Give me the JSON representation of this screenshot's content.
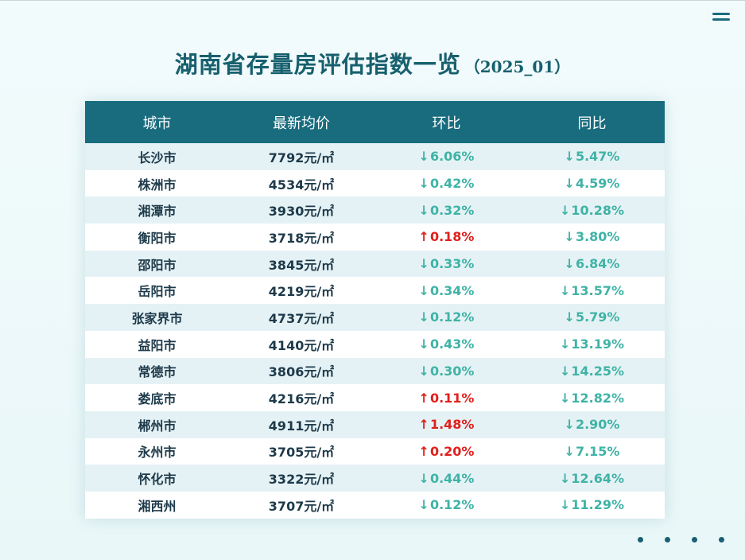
{
  "title": {
    "main": "湖南省存量房评估指数一览",
    "sub": "（2025_01）"
  },
  "table": {
    "headers": [
      "城市",
      "最新均价",
      "环比",
      "同比"
    ],
    "rows": [
      {
        "city": "长沙市",
        "price": "7792元/㎡",
        "mom": "6.06%",
        "mom_dir": "down",
        "yoy": "5.47%",
        "yoy_dir": "down"
      },
      {
        "city": "株洲市",
        "price": "4534元/㎡",
        "mom": "0.42%",
        "mom_dir": "down",
        "yoy": "4.59%",
        "yoy_dir": "down"
      },
      {
        "city": "湘潭市",
        "price": "3930元/㎡",
        "mom": "0.32%",
        "mom_dir": "down",
        "yoy": "10.28%",
        "yoy_dir": "down"
      },
      {
        "city": "衡阳市",
        "price": "3718元/㎡",
        "mom": "0.18%",
        "mom_dir": "up",
        "yoy": "3.80%",
        "yoy_dir": "down"
      },
      {
        "city": "邵阳市",
        "price": "3845元/㎡",
        "mom": "0.33%",
        "mom_dir": "down",
        "yoy": "6.84%",
        "yoy_dir": "down"
      },
      {
        "city": "岳阳市",
        "price": "4219元/㎡",
        "mom": "0.34%",
        "mom_dir": "down",
        "yoy": "13.57%",
        "yoy_dir": "down"
      },
      {
        "city": "张家界市",
        "price": "4737元/㎡",
        "mom": "0.12%",
        "mom_dir": "down",
        "yoy": "5.79%",
        "yoy_dir": "down"
      },
      {
        "city": "益阳市",
        "price": "4140元/㎡",
        "mom": "0.43%",
        "mom_dir": "down",
        "yoy": "13.19%",
        "yoy_dir": "down"
      },
      {
        "city": "常德市",
        "price": "3806元/㎡",
        "mom": "0.30%",
        "mom_dir": "down",
        "yoy": "14.25%",
        "yoy_dir": "down"
      },
      {
        "city": "娄底市",
        "price": "4216元/㎡",
        "mom": "0.11%",
        "mom_dir": "up",
        "yoy": "12.82%",
        "yoy_dir": "down"
      },
      {
        "city": "郴州市",
        "price": "4911元/㎡",
        "mom": "1.48%",
        "mom_dir": "up",
        "yoy": "2.90%",
        "yoy_dir": "down"
      },
      {
        "city": "永州市",
        "price": "3705元/㎡",
        "mom": "0.20%",
        "mom_dir": "up",
        "yoy": "7.15%",
        "yoy_dir": "down"
      },
      {
        "city": "怀化市",
        "price": "3322元/㎡",
        "mom": "0.44%",
        "mom_dir": "down",
        "yoy": "12.64%",
        "yoy_dir": "down"
      },
      {
        "city": "湘西州",
        "price": "3707元/㎡",
        "mom": "0.12%",
        "mom_dir": "down",
        "yoy": "11.29%",
        "yoy_dir": "down"
      }
    ]
  },
  "icons": {
    "menu": "menu-icon",
    "pager": "pagination-dots",
    "up": "arrow-up-icon",
    "down": "arrow-down-icon"
  },
  "colors": {
    "header_bg": "#186c7e",
    "title": "#17606e",
    "down": "#3fb3a6",
    "up": "#e0201d",
    "stripe": "#e5f2f5"
  },
  "pager": {
    "count": 4
  }
}
